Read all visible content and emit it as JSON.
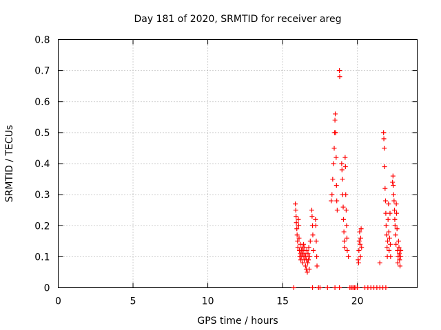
{
  "chart_data": {
    "type": "scatter",
    "title": "Day 181 of 2020, SRMTID for receiver areg",
    "xlabel": "GPS time / hours",
    "ylabel": "SRMTID / TECUs",
    "xlim": [
      0,
      24
    ],
    "ylim": [
      0,
      0.8
    ],
    "xticks": [
      0,
      5,
      10,
      15,
      20
    ],
    "yticks": [
      0,
      0.1,
      0.2,
      0.3,
      0.4,
      0.5,
      0.6,
      0.7,
      0.8
    ],
    "xtick_labels": [
      "0",
      "5",
      "10",
      "15",
      "20"
    ],
    "ytick_labels": [
      "0",
      "0.1",
      "0.2",
      "0.3",
      "0.4",
      "0.5",
      "0.6",
      "0.7",
      "0.8"
    ],
    "grid": true,
    "marker": "plus",
    "color": "#ff0000",
    "series": [
      {
        "name": "SRMTID",
        "points": [
          [
            15.75,
            0
          ],
          [
            15.85,
            0.27
          ],
          [
            15.88,
            0.25
          ],
          [
            15.9,
            0.23
          ],
          [
            15.92,
            0.21
          ],
          [
            15.95,
            0.19
          ],
          [
            15.97,
            0.17
          ],
          [
            16.0,
            0.15
          ],
          [
            16.02,
            0.13
          ],
          [
            16.05,
            0.22
          ],
          [
            16.07,
            0.2
          ],
          [
            16.1,
            0.16
          ],
          [
            16.12,
            0.12
          ],
          [
            16.15,
            0.1
          ],
          [
            16.18,
            0.14
          ],
          [
            16.2,
            0.11
          ],
          [
            16.22,
            0.09
          ],
          [
            16.25,
            0.12
          ],
          [
            16.28,
            0.1
          ],
          [
            16.3,
            0.13
          ],
          [
            16.33,
            0.11
          ],
          [
            16.35,
            0.08
          ],
          [
            16.38,
            0.12
          ],
          [
            16.4,
            0.14
          ],
          [
            16.42,
            0.1
          ],
          [
            16.45,
            0.09
          ],
          [
            16.48,
            0.13
          ],
          [
            16.5,
            0.11
          ],
          [
            16.53,
            0.07
          ],
          [
            16.55,
            0.1
          ],
          [
            16.58,
            0.06
          ],
          [
            16.6,
            0.09
          ],
          [
            16.62,
            0.12
          ],
          [
            16.65,
            0.05
          ],
          [
            16.68,
            0.08
          ],
          [
            16.7,
            0.11
          ],
          [
            16.72,
            0.09
          ],
          [
            16.75,
            0.13
          ],
          [
            16.78,
            0.06
          ],
          [
            16.8,
            0.1
          ],
          [
            16.85,
            0.15
          ],
          [
            16.95,
            0.25
          ],
          [
            16.97,
            0.23
          ],
          [
            17.0,
            0.2
          ],
          [
            17.02,
            0.17
          ],
          [
            17.05,
            0.12
          ],
          [
            17.0,
            0
          ],
          [
            17.2,
            0.22
          ],
          [
            17.22,
            0.2
          ],
          [
            17.25,
            0.15
          ],
          [
            17.28,
            0.1
          ],
          [
            17.3,
            0.07
          ],
          [
            17.4,
            0
          ],
          [
            17.5,
            0
          ],
          [
            18.0,
            0
          ],
          [
            18.25,
            0.28
          ],
          [
            18.3,
            0.3
          ],
          [
            18.35,
            0.35
          ],
          [
            18.4,
            0.4
          ],
          [
            18.45,
            0.45
          ],
          [
            18.48,
            0.5
          ],
          [
            18.5,
            0.54
          ],
          [
            18.52,
            0.56
          ],
          [
            18.55,
            0.5
          ],
          [
            18.58,
            0.42
          ],
          [
            18.6,
            0.33
          ],
          [
            18.62,
            0.28
          ],
          [
            18.65,
            0.25
          ],
          [
            18.5,
            0
          ],
          [
            18.8,
            0.7
          ],
          [
            18.82,
            0.68
          ],
          [
            18.8,
            0
          ],
          [
            18.95,
            0.4
          ],
          [
            18.97,
            0.38
          ],
          [
            19.0,
            0.35
          ],
          [
            19.02,
            0.3
          ],
          [
            19.05,
            0.26
          ],
          [
            19.07,
            0.22
          ],
          [
            19.1,
            0.18
          ],
          [
            19.12,
            0.15
          ],
          [
            19.15,
            0.13
          ],
          [
            19.18,
            0.42
          ],
          [
            19.2,
            0.39
          ],
          [
            19.22,
            0.3
          ],
          [
            19.25,
            0.25
          ],
          [
            19.28,
            0.2
          ],
          [
            19.3,
            0.16
          ],
          [
            19.32,
            0.12
          ],
          [
            19.4,
            0.1
          ],
          [
            19.5,
            0
          ],
          [
            19.6,
            0
          ],
          [
            19.7,
            0
          ],
          [
            19.8,
            0
          ],
          [
            19.9,
            0
          ],
          [
            20.0,
            0
          ],
          [
            20.05,
            0.09
          ],
          [
            20.08,
            0.08
          ],
          [
            20.1,
            0.12
          ],
          [
            20.12,
            0.15
          ],
          [
            20.15,
            0.18
          ],
          [
            20.18,
            0.14
          ],
          [
            20.2,
            0.1
          ],
          [
            20.22,
            0.16
          ],
          [
            20.25,
            0.19
          ],
          [
            20.28,
            0.13
          ],
          [
            20.5,
            0
          ],
          [
            20.7,
            0
          ],
          [
            20.9,
            0
          ],
          [
            21.1,
            0
          ],
          [
            21.3,
            0
          ],
          [
            21.5,
            0
          ],
          [
            21.7,
            0
          ],
          [
            21.9,
            0
          ],
          [
            21.5,
            0.08
          ],
          [
            21.75,
            0.5
          ],
          [
            21.77,
            0.48
          ],
          [
            21.8,
            0.45
          ],
          [
            21.82,
            0.39
          ],
          [
            21.85,
            0.32
          ],
          [
            21.88,
            0.28
          ],
          [
            21.9,
            0.24
          ],
          [
            21.92,
            0.2
          ],
          [
            21.95,
            0.17
          ],
          [
            21.98,
            0.13
          ],
          [
            22.0,
            0.1
          ],
          [
            22.02,
            0.15
          ],
          [
            22.05,
            0.22
          ],
          [
            22.08,
            0.27
          ],
          [
            22.1,
            0.18
          ],
          [
            22.12,
            0.12
          ],
          [
            22.15,
            0.16
          ],
          [
            22.18,
            0.24
          ],
          [
            22.2,
            0.14
          ],
          [
            22.22,
            0.1
          ],
          [
            22.35,
            0.34
          ],
          [
            22.38,
            0.36
          ],
          [
            22.4,
            0.33
          ],
          [
            22.42,
            0.3
          ],
          [
            22.45,
            0.28
          ],
          [
            22.48,
            0.25
          ],
          [
            22.5,
            0.22
          ],
          [
            22.52,
            0.2
          ],
          [
            22.55,
            0.17
          ],
          [
            22.58,
            0.14
          ],
          [
            22.6,
            0.27
          ],
          [
            22.62,
            0.24
          ],
          [
            22.65,
            0.19
          ],
          [
            22.68,
            0.12
          ],
          [
            22.7,
            0.08
          ],
          [
            22.72,
            0.1
          ],
          [
            22.75,
            0.15
          ],
          [
            22.78,
            0.13
          ],
          [
            22.8,
            0.11
          ],
          [
            22.82,
            0.09
          ],
          [
            22.85,
            0.07
          ],
          [
            22.88,
            0.1
          ],
          [
            22.9,
            0.12
          ]
        ]
      }
    ]
  }
}
